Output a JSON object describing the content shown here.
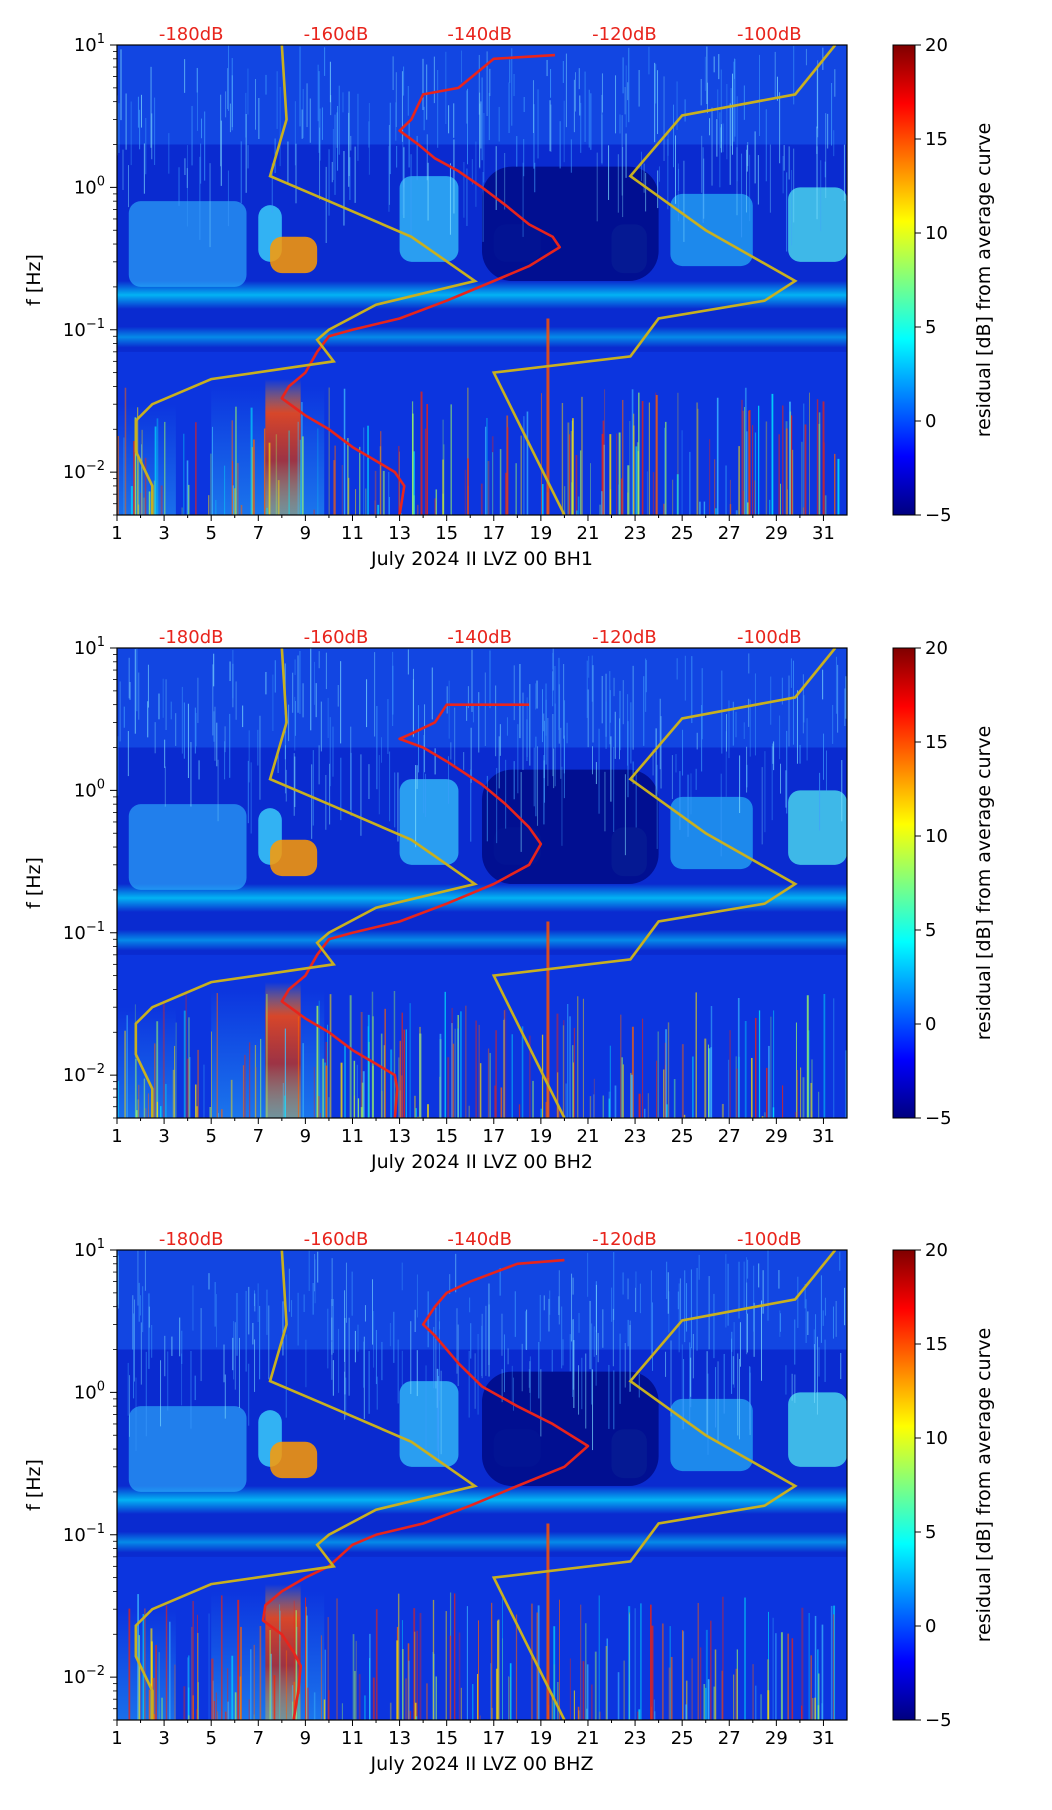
{
  "chart_data": [
    {
      "type": "heatmap",
      "xlabel": "July 2024 II LVZ 00 BH1",
      "ylabel": "f [Hz]",
      "xlim": [
        1,
        32
      ],
      "ylim": [
        0.005,
        10
      ],
      "yscale": "log",
      "x_ticks": [
        "1",
        "3",
        "5",
        "7",
        "9",
        "11",
        "13",
        "15",
        "17",
        "19",
        "21",
        "23",
        "25",
        "27",
        "29",
        "31"
      ],
      "y_ticks": [
        {
          "base": "10",
          "exp": "1"
        },
        {
          "base": "10",
          "exp": "0"
        },
        {
          "base": "10",
          "exp": "−1"
        },
        {
          "base": "10",
          "exp": "−2"
        }
      ],
      "top_labels": [
        "-180dB",
        "-160dB",
        "-140dB",
        "-120dB",
        "-100dB"
      ],
      "colorbar": {
        "label": "residual [dB] from average curve",
        "range": [
          -5,
          20
        ],
        "ticks": [
          "20",
          "15",
          "10",
          "5",
          "0",
          "−5"
        ]
      },
      "average_curve": {
        "color": "#e8241c",
        "points": [
          [
            19.6,
            8.5
          ],
          [
            17,
            8
          ],
          [
            15.5,
            5
          ],
          [
            14,
            4.5
          ],
          [
            13.5,
            3
          ],
          [
            13,
            2.5
          ],
          [
            13.8,
            2
          ],
          [
            14.5,
            1.6
          ],
          [
            15.5,
            1.3
          ],
          [
            16.5,
            1
          ],
          [
            17.5,
            0.75
          ],
          [
            18.5,
            0.55
          ],
          [
            19.5,
            0.45
          ],
          [
            19.8,
            0.38
          ],
          [
            18.5,
            0.28
          ],
          [
            17,
            0.22
          ],
          [
            15,
            0.16
          ],
          [
            13,
            0.12
          ],
          [
            11,
            0.1
          ],
          [
            10,
            0.09
          ],
          [
            9.5,
            0.07
          ],
          [
            9,
            0.05
          ],
          [
            8.3,
            0.04
          ],
          [
            8,
            0.033
          ],
          [
            9,
            0.025
          ],
          [
            10,
            0.02
          ],
          [
            11,
            0.015
          ],
          [
            12,
            0.012
          ],
          [
            12.8,
            0.01
          ],
          [
            13.2,
            0.008
          ],
          [
            13,
            0.005
          ]
        ]
      },
      "low_noise_model": {
        "color": "#c8b020",
        "points": [
          [
            8,
            10
          ],
          [
            8.2,
            3
          ],
          [
            7.5,
            1.2
          ],
          [
            10,
            0.8
          ],
          [
            13.5,
            0.45
          ],
          [
            16.2,
            0.22
          ],
          [
            12,
            0.15
          ],
          [
            10,
            0.1
          ],
          [
            9.5,
            0.085
          ],
          [
            10.2,
            0.06
          ],
          [
            5,
            0.045
          ],
          [
            2.5,
            0.03
          ],
          [
            1.8,
            0.023
          ],
          [
            1.8,
            0.014
          ],
          [
            2.5,
            0.008
          ],
          [
            2.5,
            0.005
          ]
        ]
      },
      "high_noise_model": {
        "color": "#c8b020",
        "points": [
          [
            31.5,
            10
          ],
          [
            29.8,
            4.5
          ],
          [
            25,
            3.2
          ],
          [
            22.8,
            1.2
          ],
          [
            26,
            0.5
          ],
          [
            29.8,
            0.22
          ],
          [
            28.5,
            0.16
          ],
          [
            24,
            0.12
          ],
          [
            22.8,
            0.065
          ],
          [
            17,
            0.05
          ],
          [
            20,
            0.005
          ]
        ]
      }
    },
    {
      "type": "heatmap",
      "xlabel": "July 2024 II LVZ 00 BH2",
      "ylabel": "f [Hz]",
      "xlim": [
        1,
        32
      ],
      "ylim": [
        0.005,
        10
      ],
      "yscale": "log",
      "x_ticks": [
        "1",
        "3",
        "5",
        "7",
        "9",
        "11",
        "13",
        "15",
        "17",
        "19",
        "21",
        "23",
        "25",
        "27",
        "29",
        "31"
      ],
      "y_ticks": [
        {
          "base": "10",
          "exp": "1"
        },
        {
          "base": "10",
          "exp": "0"
        },
        {
          "base": "10",
          "exp": "−1"
        },
        {
          "base": "10",
          "exp": "−2"
        }
      ],
      "top_labels": [
        "-180dB",
        "-160dB",
        "-140dB",
        "-120dB",
        "-100dB"
      ],
      "colorbar": {
        "label": "residual [dB] from average curve",
        "range": [
          -5,
          20
        ],
        "ticks": [
          "20",
          "15",
          "10",
          "5",
          "0",
          "−5"
        ]
      },
      "average_curve": {
        "color": "#e8241c",
        "points": [
          [
            18.5,
            4
          ],
          [
            17,
            4
          ],
          [
            15,
            4
          ],
          [
            14.5,
            3
          ],
          [
            13.5,
            2.5
          ],
          [
            13,
            2.3
          ],
          [
            14,
            2
          ],
          [
            15,
            1.6
          ],
          [
            16.5,
            1.1
          ],
          [
            17.5,
            0.8
          ],
          [
            18.5,
            0.55
          ],
          [
            19,
            0.42
          ],
          [
            18.5,
            0.3
          ],
          [
            17,
            0.22
          ],
          [
            15,
            0.16
          ],
          [
            13,
            0.12
          ],
          [
            11,
            0.1
          ],
          [
            10,
            0.09
          ],
          [
            9.5,
            0.07
          ],
          [
            9,
            0.05
          ],
          [
            8.3,
            0.04
          ],
          [
            8,
            0.033
          ],
          [
            9,
            0.025
          ],
          [
            10,
            0.02
          ],
          [
            11,
            0.015
          ],
          [
            12,
            0.012
          ],
          [
            12.8,
            0.01
          ],
          [
            12.9,
            0.008
          ],
          [
            12.8,
            0.005
          ]
        ]
      },
      "low_noise_model": {
        "color": "#c8b020",
        "points": [
          [
            8,
            10
          ],
          [
            8.2,
            3
          ],
          [
            7.5,
            1.2
          ],
          [
            10,
            0.8
          ],
          [
            13.5,
            0.45
          ],
          [
            16.2,
            0.22
          ],
          [
            12,
            0.15
          ],
          [
            10,
            0.1
          ],
          [
            9.5,
            0.085
          ],
          [
            10.2,
            0.06
          ],
          [
            5,
            0.045
          ],
          [
            2.5,
            0.03
          ],
          [
            1.8,
            0.023
          ],
          [
            1.8,
            0.014
          ],
          [
            2.5,
            0.008
          ],
          [
            2.5,
            0.005
          ]
        ]
      },
      "high_noise_model": {
        "color": "#c8b020",
        "points": [
          [
            31.5,
            10
          ],
          [
            29.8,
            4.5
          ],
          [
            25,
            3.2
          ],
          [
            22.8,
            1.2
          ],
          [
            26,
            0.5
          ],
          [
            29.8,
            0.22
          ],
          [
            28.5,
            0.16
          ],
          [
            24,
            0.12
          ],
          [
            22.8,
            0.065
          ],
          [
            17,
            0.05
          ],
          [
            20,
            0.005
          ]
        ]
      }
    },
    {
      "type": "heatmap",
      "xlabel": "July 2024 II LVZ 00 BHZ",
      "ylabel": "f [Hz]",
      "xlim": [
        1,
        32
      ],
      "ylim": [
        0.005,
        10
      ],
      "yscale": "log",
      "x_ticks": [
        "1",
        "3",
        "5",
        "7",
        "9",
        "11",
        "13",
        "15",
        "17",
        "19",
        "21",
        "23",
        "25",
        "27",
        "29",
        "31"
      ],
      "y_ticks": [
        {
          "base": "10",
          "exp": "1"
        },
        {
          "base": "10",
          "exp": "0"
        },
        {
          "base": "10",
          "exp": "−1"
        },
        {
          "base": "10",
          "exp": "−2"
        }
      ],
      "top_labels": [
        "-180dB",
        "-160dB",
        "-140dB",
        "-120dB",
        "-100dB"
      ],
      "colorbar": {
        "label": "residual [dB] from average curve",
        "range": [
          -5,
          20
        ],
        "ticks": [
          "20",
          "15",
          "10",
          "5",
          "0",
          "−5"
        ]
      },
      "average_curve": {
        "color": "#e8241c",
        "points": [
          [
            20,
            8.5
          ],
          [
            18,
            8
          ],
          [
            16,
            6
          ],
          [
            15,
            5
          ],
          [
            14.5,
            4
          ],
          [
            14,
            3
          ],
          [
            14.5,
            2.5
          ],
          [
            15,
            2
          ],
          [
            15.5,
            1.6
          ],
          [
            16.5,
            1.1
          ],
          [
            18,
            0.8
          ],
          [
            19.5,
            0.6
          ],
          [
            21,
            0.42
          ],
          [
            20,
            0.3
          ],
          [
            18,
            0.22
          ],
          [
            16,
            0.16
          ],
          [
            14,
            0.12
          ],
          [
            12,
            0.1
          ],
          [
            11,
            0.085
          ],
          [
            10,
            0.06
          ],
          [
            9,
            0.05
          ],
          [
            8,
            0.04
          ],
          [
            7.3,
            0.032
          ],
          [
            7.2,
            0.025
          ],
          [
            8,
            0.02
          ],
          [
            8.5,
            0.015
          ],
          [
            8.8,
            0.012
          ],
          [
            8.7,
            0.008
          ],
          [
            8.5,
            0.005
          ]
        ]
      },
      "low_noise_model": {
        "color": "#c8b020",
        "points": [
          [
            8,
            10
          ],
          [
            8.2,
            3
          ],
          [
            7.5,
            1.2
          ],
          [
            10,
            0.8
          ],
          [
            13.5,
            0.45
          ],
          [
            16.2,
            0.22
          ],
          [
            12,
            0.15
          ],
          [
            10,
            0.1
          ],
          [
            9.5,
            0.085
          ],
          [
            10.2,
            0.06
          ],
          [
            5,
            0.045
          ],
          [
            2.5,
            0.03
          ],
          [
            1.8,
            0.023
          ],
          [
            1.8,
            0.014
          ],
          [
            2.5,
            0.008
          ],
          [
            2.5,
            0.005
          ]
        ]
      },
      "high_noise_model": {
        "color": "#c8b020",
        "points": [
          [
            31.5,
            10
          ],
          [
            29.8,
            4.5
          ],
          [
            25,
            3.2
          ],
          [
            22.8,
            1.2
          ],
          [
            26,
            0.5
          ],
          [
            29.8,
            0.22
          ],
          [
            28.5,
            0.16
          ],
          [
            24,
            0.12
          ],
          [
            22.8,
            0.065
          ],
          [
            17,
            0.05
          ],
          [
            20,
            0.005
          ]
        ]
      }
    }
  ]
}
